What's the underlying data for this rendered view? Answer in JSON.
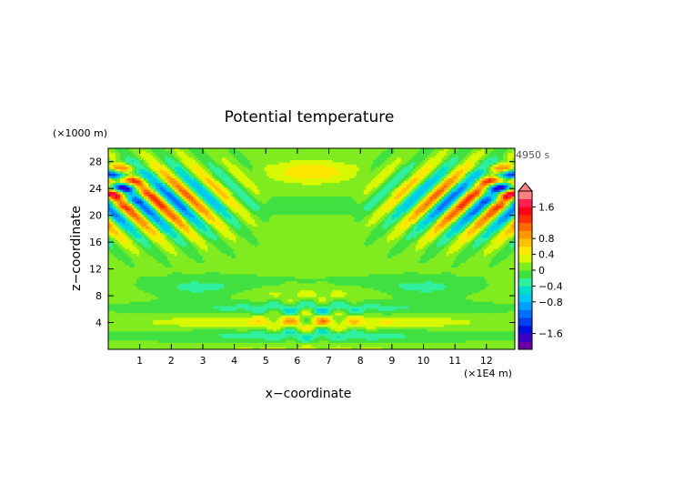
{
  "chart_data": {
    "type": "heatmap",
    "title": "Potential temperature",
    "xlabel": "x−coordinate",
    "ylabel": "z−coordinate",
    "x_unit": "(×1E4 m)",
    "y_unit": "(×1000 m)",
    "time_label": "4950 s",
    "xlim": [
      0,
      12.9
    ],
    "ylim": [
      0,
      30
    ],
    "xticks": [
      "1",
      "2",
      "3",
      "4",
      "5",
      "6",
      "7",
      "8",
      "9",
      "10",
      "11",
      "12"
    ],
    "xtick_values": [
      1,
      2,
      3,
      4,
      5,
      6,
      7,
      8,
      9,
      10,
      11,
      12
    ],
    "yticks": [
      "4",
      "8",
      "12",
      "16",
      "20",
      "24",
      "28"
    ],
    "ytick_values": [
      4,
      8,
      12,
      16,
      20,
      24,
      28
    ],
    "colorbar": {
      "range": [
        -2.0,
        2.0
      ],
      "labels": [
        "1.6",
        "0.8",
        "0.4",
        "0",
        "−0.4",
        "−0.8",
        "−1.6"
      ],
      "label_values": [
        1.6,
        0.8,
        0.4,
        0,
        -0.4,
        -0.8,
        -1.6
      ],
      "levels": [
        -2.0,
        -1.8,
        -1.6,
        -1.4,
        -1.2,
        -1.0,
        -0.8,
        -0.6,
        -0.4,
        -0.2,
        0,
        0.2,
        0.4,
        0.6,
        0.8,
        1.0,
        1.2,
        1.4,
        1.6,
        1.8,
        2.0
      ],
      "colors": [
        "#6a00a0",
        "#3a00c8",
        "#0010e0",
        "#0040f0",
        "#0070ff",
        "#00a0ff",
        "#00c8f0",
        "#00e0c8",
        "#30f0a0",
        "#40e040",
        "#80ec20",
        "#d8f800",
        "#ffe800",
        "#ffc000",
        "#ff9800",
        "#ff6800",
        "#ff3000",
        "#ff0018",
        "#ff2050",
        "#ff8080"
      ]
    }
  }
}
